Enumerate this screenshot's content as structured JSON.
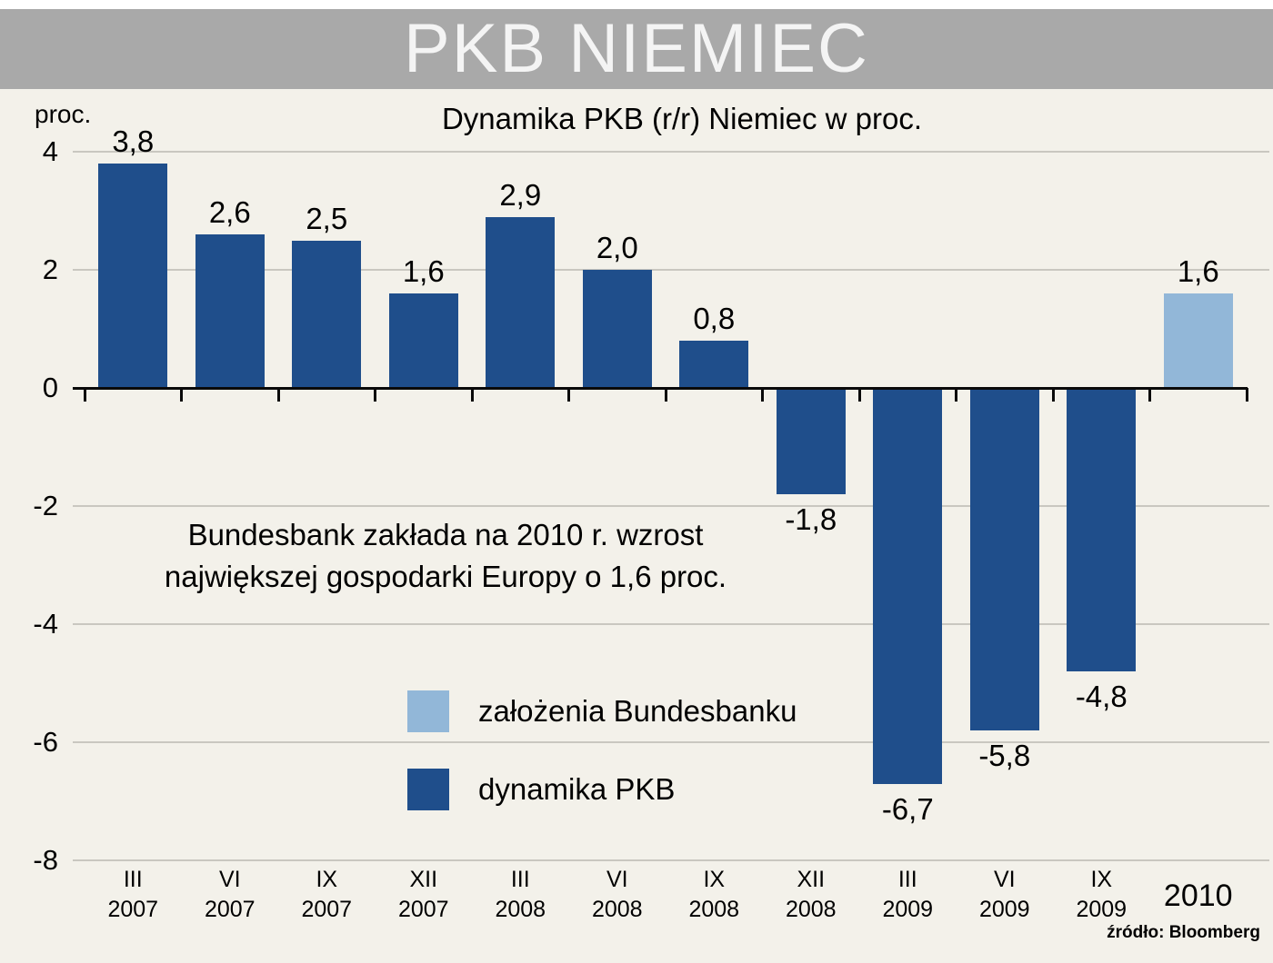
{
  "banner": {
    "title": "PKB NIEMIEC"
  },
  "chart": {
    "title": "Dynamika PKB (r/r) Niemiec w proc.",
    "y_axis_label": "proc.",
    "annotation": {
      "line1": "Bundesbank zakłada na 2010 r. wzrost",
      "line2": "największej gospodarki Europy o 1,6 proc."
    },
    "legend": [
      {
        "label": "założenia Bundesbanku",
        "color": "#92b7d8"
      },
      {
        "label": "dynamika PKB",
        "color": "#1f4e8b"
      }
    ],
    "source": "źródło: Bloomberg"
  },
  "chart_data": {
    "type": "bar",
    "title": "Dynamika PKB (r/r) Niemiec w proc.",
    "xlabel": "",
    "ylabel": "proc.",
    "ylim": [
      -8,
      4
    ],
    "yticks": [
      4,
      2,
      0,
      -2,
      -4,
      -6,
      -8
    ],
    "grid": "on",
    "legend_position": "inside-lower-left",
    "categories": [
      "III 2007",
      "VI 2007",
      "IX 2007",
      "XII 2007",
      "III 2008",
      "VI 2008",
      "IX 2008",
      "XII 2008",
      "III 2009",
      "VI 2009",
      "IX 2009",
      "2010"
    ],
    "x_labels": [
      [
        "III",
        "2007"
      ],
      [
        "VI",
        "2007"
      ],
      [
        "IX",
        "2007"
      ],
      [
        "XII",
        "2007"
      ],
      [
        "III",
        "2008"
      ],
      [
        "VI",
        "2008"
      ],
      [
        "IX",
        "2008"
      ],
      [
        "XII",
        "2008"
      ],
      [
        "III",
        "2009"
      ],
      [
        "VI",
        "2009"
      ],
      [
        "IX",
        "2009"
      ],
      [
        "2010"
      ]
    ],
    "values": [
      3.8,
      2.6,
      2.5,
      1.6,
      2.9,
      2.0,
      0.8,
      -1.8,
      -6.7,
      -5.8,
      -4.8,
      1.6
    ],
    "labels": [
      "3,8",
      "2,6",
      "2,5",
      "1,6",
      "2,9",
      "2,0",
      "0,8",
      "-1,8",
      "-6,7",
      "-5,8",
      "-4,8",
      "1,6"
    ],
    "bar_colors": [
      "dark",
      "dark",
      "dark",
      "dark",
      "dark",
      "dark",
      "dark",
      "dark",
      "dark",
      "dark",
      "dark",
      "light"
    ],
    "colors": {
      "dark": "#1f4e8b",
      "light": "#92b7d8"
    },
    "forecast_index": 11,
    "series_note": "dark = dynamika PKB, light = założenia Bundesbanku"
  }
}
